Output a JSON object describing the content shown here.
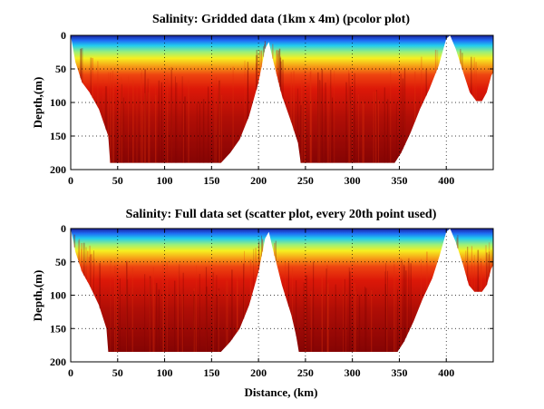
{
  "figure": {
    "xlabel": "Distance, (km)"
  },
  "colors": {
    "background": "#ffffff",
    "axes_color": "#000000",
    "grid_color": "#000000",
    "colormap": "jet"
  },
  "chart_data": [
    {
      "type": "heatmap",
      "title": "Salinity: Gridded data (1km x 4m) (pcolor plot)",
      "xlabel": "",
      "ylabel": "Depth,(m)",
      "xlim": [
        0,
        450
      ],
      "ylim": [
        0,
        200
      ],
      "y_reversed": true,
      "xticks": [
        "0",
        "50",
        "100",
        "150",
        "200",
        "250",
        "300",
        "350",
        "400"
      ],
      "xtick_values": [
        0,
        50,
        100,
        150,
        200,
        250,
        300,
        350,
        400
      ],
      "yticks": [
        "0",
        "50",
        "100",
        "150",
        "200"
      ],
      "ytick_values": [
        0,
        50,
        100,
        150,
        200
      ],
      "grid": "dotted",
      "bottom_profile": [
        [
          0,
          0
        ],
        [
          5,
          40
        ],
        [
          12,
          70
        ],
        [
          20,
          85
        ],
        [
          30,
          110
        ],
        [
          40,
          150
        ],
        [
          42,
          190
        ],
        [
          60,
          190
        ],
        [
          100,
          190
        ],
        [
          160,
          190
        ],
        [
          170,
          175
        ],
        [
          180,
          155
        ],
        [
          190,
          120
        ],
        [
          200,
          70
        ],
        [
          207,
          20
        ],
        [
          211,
          10
        ],
        [
          216,
          40
        ],
        [
          225,
          90
        ],
        [
          235,
          130
        ],
        [
          242,
          160
        ],
        [
          245,
          190
        ],
        [
          290,
          190
        ],
        [
          345,
          190
        ],
        [
          352,
          175
        ],
        [
          362,
          145
        ],
        [
          372,
          110
        ],
        [
          382,
          80
        ],
        [
          392,
          45
        ],
        [
          400,
          5
        ],
        [
          404,
          0
        ],
        [
          410,
          20
        ],
        [
          418,
          55
        ],
        [
          425,
          85
        ],
        [
          432,
          98
        ],
        [
          438,
          98
        ],
        [
          443,
          85
        ],
        [
          448,
          60
        ],
        [
          450,
          55
        ]
      ]
    },
    {
      "type": "scatter",
      "title": "Salinity: Full data set (scatter plot, every 20th point used)",
      "xlabel": "Distance, (km)",
      "ylabel": "Depth,(m)",
      "xlim": [
        0,
        450
      ],
      "ylim": [
        0,
        200
      ],
      "y_reversed": true,
      "xticks": [
        "0",
        "50",
        "100",
        "150",
        "200",
        "250",
        "300",
        "350",
        "400"
      ],
      "xtick_values": [
        0,
        50,
        100,
        150,
        200,
        250,
        300,
        350,
        400
      ],
      "yticks": [
        "0",
        "50",
        "100",
        "150",
        "200"
      ],
      "ytick_values": [
        0,
        50,
        100,
        150,
        200
      ],
      "grid": "dotted",
      "bottom_profile": [
        [
          0,
          0
        ],
        [
          5,
          35
        ],
        [
          12,
          65
        ],
        [
          20,
          85
        ],
        [
          30,
          115
        ],
        [
          38,
          150
        ],
        [
          40,
          185
        ],
        [
          60,
          185
        ],
        [
          100,
          185
        ],
        [
          160,
          185
        ],
        [
          170,
          170
        ],
        [
          180,
          150
        ],
        [
          190,
          115
        ],
        [
          200,
          65
        ],
        [
          207,
          15
        ],
        [
          211,
          5
        ],
        [
          216,
          35
        ],
        [
          225,
          85
        ],
        [
          235,
          130
        ],
        [
          240,
          160
        ],
        [
          243,
          185
        ],
        [
          290,
          185
        ],
        [
          348,
          185
        ],
        [
          355,
          170
        ],
        [
          365,
          140
        ],
        [
          375,
          105
        ],
        [
          385,
          75
        ],
        [
          393,
          40
        ],
        [
          400,
          5
        ],
        [
          404,
          0
        ],
        [
          410,
          20
        ],
        [
          418,
          55
        ],
        [
          424,
          85
        ],
        [
          430,
          95
        ],
        [
          438,
          95
        ],
        [
          443,
          85
        ],
        [
          448,
          60
        ],
        [
          450,
          55
        ]
      ]
    }
  ]
}
